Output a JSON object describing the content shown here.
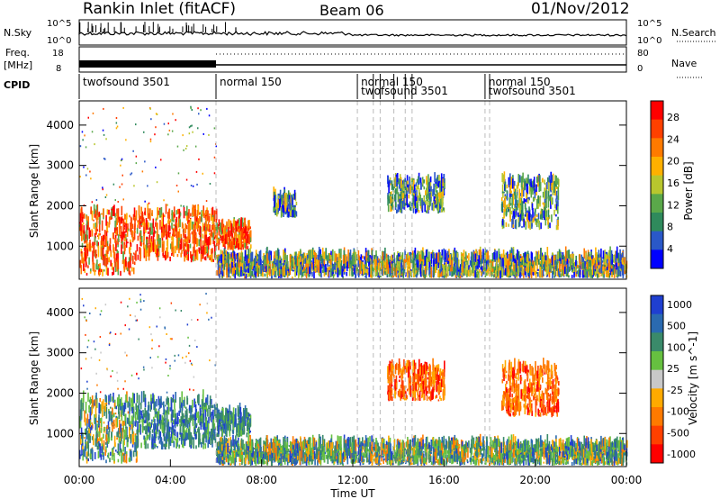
{
  "header": {
    "station": "Rankin Inlet (fitACF)",
    "beam": "Beam 06",
    "date": "01/Nov/2012"
  },
  "noise_panel": {
    "left_label": "N.Sky",
    "right_label": "N.Search",
    "left_ticks": [
      "10^5",
      "10^0"
    ],
    "right_ticks": [
      "10^5",
      "10^0"
    ]
  },
  "freq_panel": {
    "left_label_line1": "Freq.",
    "left_label_line2": "[MHz]",
    "right_label": "Nave",
    "left_ticks": [
      "18",
      "8"
    ],
    "right_ticks": [
      "80",
      "0"
    ]
  },
  "cpid": {
    "label": "CPID",
    "segments": [
      {
        "name": "twofsound 3501",
        "start_h": 0.0,
        "end_h": 6.0
      },
      {
        "name": "normal 150",
        "start_h": 6.0,
        "end_h": 12.2
      },
      {
        "name": "normal 150",
        "start_h": 12.2,
        "end_h": 17.8
      },
      {
        "name": "twofsound 3501",
        "start_h": 12.2,
        "end_h": 17.8
      },
      {
        "name": "normal 150",
        "start_h": 17.8,
        "end_h": 24.0
      },
      {
        "name": "twofsound 3501",
        "start_h": 17.8,
        "end_h": 24.0
      }
    ],
    "switch_times_h": [
      6.0,
      12.2,
      12.9,
      13.2,
      13.8,
      14.3,
      14.6,
      17.8,
      18.0
    ]
  },
  "colors": {
    "power_scale": [
      "#0000ff",
      "#2a58c8",
      "#2f8a5c",
      "#5aa84a",
      "#b8c62e",
      "#ffb000",
      "#ff7a00",
      "#ff4000",
      "#ff0000"
    ],
    "velocity_scale": [
      "#1f3fd0",
      "#2a6ab0",
      "#3a8a6a",
      "#66c040",
      "#c8c8c8",
      "#ffaa00",
      "#ff7a00",
      "#ff4000",
      "#ff0000"
    ]
  },
  "chart_data": [
    {
      "type": "heatmap",
      "title": "Power",
      "xlabel": "",
      "ylabel": "Slant Range [km]",
      "xlim_hours": [
        0,
        24
      ],
      "ylim_km": [
        180,
        4600
      ],
      "y_ticks": [
        "1000",
        "2000",
        "3000",
        "4000"
      ],
      "colorbar_label": "Power [dB]",
      "colorbar_ticks": [
        "4",
        "8",
        "12",
        "16",
        "20",
        "24",
        "28"
      ],
      "echo_regions": [
        {
          "t0": 0.0,
          "t1": 2.5,
          "r0": 250,
          "r1": 1800,
          "level": "high"
        },
        {
          "t0": 2.5,
          "t1": 6.0,
          "r0": 600,
          "r1": 1800,
          "level": "high"
        },
        {
          "t0": 6.0,
          "t1": 7.5,
          "r0": 900,
          "r1": 1500,
          "level": "high"
        },
        {
          "t0": 8.5,
          "t1": 9.5,
          "r0": 1700,
          "r1": 2200,
          "level": "medium"
        },
        {
          "t0": 13.5,
          "t1": 16.0,
          "r0": 1800,
          "r1": 2600,
          "level": "medium"
        },
        {
          "t0": 18.5,
          "t1": 21.0,
          "r0": 1400,
          "r1": 2600,
          "level": "medium"
        },
        {
          "t0": 6.0,
          "t1": 24.0,
          "r0": 200,
          "r1": 700,
          "level": "low"
        }
      ]
    },
    {
      "type": "heatmap",
      "title": "Velocity",
      "xlabel": "Time UT",
      "ylabel": "Slant Range [km]",
      "xlim_hours": [
        0,
        24
      ],
      "ylim_km": [
        180,
        4600
      ],
      "x_ticks": [
        "00:00",
        "04:00",
        "08:00",
        "12:00",
        "16:00",
        "20:00",
        "00:00"
      ],
      "y_ticks": [
        "1000",
        "2000",
        "3000",
        "4000"
      ],
      "colorbar_label": "Velocity [m s^-1]",
      "colorbar_ticks": [
        "1000",
        "500",
        "100",
        "25",
        "-25",
        "-100",
        "-500",
        "-1000"
      ],
      "echo_regions": [
        {
          "t0": 0.0,
          "t1": 2.5,
          "r0": 250,
          "r1": 1800,
          "level": "mixed"
        },
        {
          "t0": 2.5,
          "t1": 6.0,
          "r0": 600,
          "r1": 1800,
          "level": "toward"
        },
        {
          "t0": 6.0,
          "t1": 7.5,
          "r0": 900,
          "r1": 1500,
          "level": "toward"
        },
        {
          "t0": 13.5,
          "t1": 16.0,
          "r0": 1800,
          "r1": 2600,
          "level": "away"
        },
        {
          "t0": 18.5,
          "t1": 21.0,
          "r0": 1400,
          "r1": 2600,
          "level": "away"
        },
        {
          "t0": 6.0,
          "t1": 24.0,
          "r0": 200,
          "r1": 700,
          "level": "mixed"
        }
      ]
    }
  ]
}
